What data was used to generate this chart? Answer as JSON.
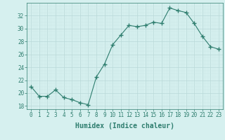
{
  "x": [
    0,
    1,
    2,
    3,
    4,
    5,
    6,
    7,
    8,
    9,
    10,
    11,
    12,
    13,
    14,
    15,
    16,
    17,
    18,
    19,
    20,
    21,
    22,
    23
  ],
  "y": [
    21,
    19.5,
    19.5,
    20.5,
    19.3,
    19.0,
    18.5,
    18.2,
    22.5,
    24.5,
    27.5,
    29.0,
    30.5,
    30.3,
    30.5,
    31.0,
    30.8,
    33.2,
    32.8,
    32.5,
    30.8,
    28.8,
    27.2,
    26.8
  ],
  "line_color": "#2e7d6e",
  "marker_color": "#2e7d6e",
  "bg_color": "#d6f0ef",
  "grid_major_color": "#b8d8d8",
  "grid_minor_color": "#cce8e8",
  "xlabel": "Humidex (Indice chaleur)",
  "ylim": [
    17.5,
    34.0
  ],
  "xlim": [
    -0.5,
    23.5
  ],
  "yticks": [
    18,
    20,
    22,
    24,
    26,
    28,
    30,
    32
  ],
  "xticks": [
    0,
    1,
    2,
    3,
    4,
    5,
    6,
    7,
    8,
    9,
    10,
    11,
    12,
    13,
    14,
    15,
    16,
    17,
    18,
    19,
    20,
    21,
    22,
    23
  ],
  "tick_font_size": 5.5,
  "xlabel_font_size": 7.0
}
